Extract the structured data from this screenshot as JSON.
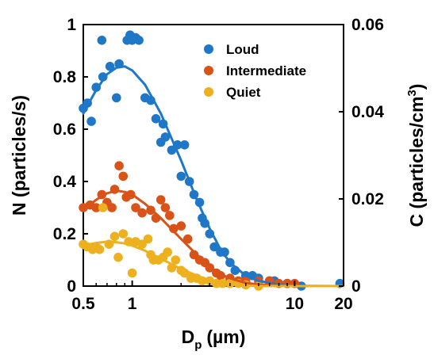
{
  "chart_data": {
    "type": "scatter",
    "title": "",
    "xlabel": "D",
    "xlabel_subscript": "p",
    "xlabel_unit": "(µm)",
    "ylabel_left": "N (particles/s)",
    "ylabel_right": "C (particles/cm",
    "ylabel_right_superscript": "3",
    "ylabel_right_close": ")",
    "x_scale": "log",
    "xlim": [
      0.5,
      20
    ],
    "ylim_left": [
      0,
      1
    ],
    "ylim_right": [
      0,
      0.06
    ],
    "x_ticks": [
      0.5,
      1,
      10,
      20
    ],
    "x_tick_labels": [
      "0.5",
      "1",
      "10",
      "20"
    ],
    "y_ticks_left": [
      0,
      0.2,
      0.4,
      0.6,
      0.8,
      1
    ],
    "y_tick_labels_left": [
      "0",
      "0.2",
      "0.4",
      "0.6",
      "0.8",
      "1"
    ],
    "y_ticks_right": [
      0,
      0.02,
      0.04,
      0.06
    ],
    "y_tick_labels_right": [
      "0",
      "0.02",
      "0.04",
      "0.06"
    ],
    "grid": false,
    "legend_position": "top-right",
    "series": [
      {
        "name": "Loud",
        "color": "#1f77c8",
        "points": [
          [
            0.5,
            0.68
          ],
          [
            0.53,
            0.7
          ],
          [
            0.56,
            0.63
          ],
          [
            0.6,
            0.76
          ],
          [
            0.65,
            0.94
          ],
          [
            0.66,
            0.8
          ],
          [
            0.73,
            0.84
          ],
          [
            0.8,
            0.72
          ],
          [
            0.83,
            0.85
          ],
          [
            0.93,
            0.94
          ],
          [
            0.97,
            0.96
          ],
          [
            1.0,
            0.94
          ],
          [
            1.05,
            0.95
          ],
          [
            1.1,
            0.94
          ],
          [
            1.2,
            0.72
          ],
          [
            1.3,
            0.71
          ],
          [
            1.4,
            0.64
          ],
          [
            1.5,
            0.55
          ],
          [
            1.55,
            0.62
          ],
          [
            1.6,
            0.57
          ],
          [
            1.75,
            0.52
          ],
          [
            1.9,
            0.54
          ],
          [
            2.0,
            0.42
          ],
          [
            2.1,
            0.54
          ],
          [
            2.25,
            0.4
          ],
          [
            2.4,
            0.35
          ],
          [
            2.6,
            0.32
          ],
          [
            2.7,
            0.26
          ],
          [
            2.8,
            0.24
          ],
          [
            3.0,
            0.2
          ],
          [
            3.2,
            0.15
          ],
          [
            3.5,
            0.13
          ],
          [
            3.7,
            0.13
          ],
          [
            4.0,
            0.09
          ],
          [
            4.3,
            0.06
          ],
          [
            5.0,
            0.04
          ],
          [
            5.5,
            0.04
          ],
          [
            6.0,
            0.03
          ],
          [
            7.0,
            0.02
          ],
          [
            7.5,
            0.02
          ],
          [
            9.0,
            0.01
          ],
          [
            11.0,
            0.0
          ],
          [
            19.0,
            0.01
          ]
        ],
        "fit": [
          [
            0.5,
            0.66
          ],
          [
            0.6,
            0.75
          ],
          [
            0.7,
            0.81
          ],
          [
            0.8,
            0.835
          ],
          [
            0.9,
            0.84
          ],
          [
            1.0,
            0.825
          ],
          [
            1.2,
            0.77
          ],
          [
            1.5,
            0.66
          ],
          [
            2.0,
            0.48
          ],
          [
            2.5,
            0.33
          ],
          [
            3.0,
            0.22
          ],
          [
            3.5,
            0.14
          ],
          [
            4.0,
            0.09
          ],
          [
            5.0,
            0.04
          ],
          [
            6.0,
            0.02
          ],
          [
            8.0,
            0.005
          ],
          [
            10.0,
            0.001
          ],
          [
            20.0,
            0.0
          ]
        ]
      },
      {
        "name": "Intermediate",
        "color": "#d95319",
        "points": [
          [
            0.5,
            0.3
          ],
          [
            0.55,
            0.31
          ],
          [
            0.6,
            0.3
          ],
          [
            0.65,
            0.35
          ],
          [
            0.7,
            0.32
          ],
          [
            0.75,
            0.3
          ],
          [
            0.78,
            0.37
          ],
          [
            0.83,
            0.46
          ],
          [
            0.88,
            0.42
          ],
          [
            0.92,
            0.34
          ],
          [
            0.98,
            0.35
          ],
          [
            1.05,
            0.3
          ],
          [
            1.15,
            0.28
          ],
          [
            1.3,
            0.29
          ],
          [
            1.4,
            0.26
          ],
          [
            1.5,
            0.33
          ],
          [
            1.6,
            0.3
          ],
          [
            1.7,
            0.27
          ],
          [
            1.8,
            0.22
          ],
          [
            2.0,
            0.23
          ],
          [
            2.2,
            0.18
          ],
          [
            2.4,
            0.12
          ],
          [
            2.6,
            0.1
          ],
          [
            2.8,
            0.09
          ],
          [
            3.0,
            0.07
          ],
          [
            3.3,
            0.05
          ],
          [
            3.5,
            0.04
          ],
          [
            4.0,
            0.03
          ],
          [
            4.5,
            0.02
          ],
          [
            5.0,
            0.02
          ],
          [
            6.0,
            0.02
          ],
          [
            7.0,
            0.02
          ],
          [
            8.0,
            0.01
          ],
          [
            9.0,
            0.01
          ],
          [
            10.0,
            0.01
          ]
        ],
        "fit": [
          [
            0.5,
            0.29
          ],
          [
            0.6,
            0.33
          ],
          [
            0.7,
            0.355
          ],
          [
            0.8,
            0.365
          ],
          [
            0.9,
            0.36
          ],
          [
            1.0,
            0.35
          ],
          [
            1.2,
            0.315
          ],
          [
            1.5,
            0.26
          ],
          [
            2.0,
            0.18
          ],
          [
            2.5,
            0.12
          ],
          [
            3.0,
            0.075
          ],
          [
            3.5,
            0.045
          ],
          [
            4.0,
            0.03
          ],
          [
            5.0,
            0.012
          ],
          [
            6.0,
            0.006
          ],
          [
            8.0,
            0.002
          ],
          [
            10.0,
            0.0
          ],
          [
            20.0,
            0.0
          ]
        ]
      },
      {
        "name": "Quiet",
        "color": "#edb120",
        "points": [
          [
            0.5,
            0.16
          ],
          [
            0.53,
            0.15
          ],
          [
            0.57,
            0.14
          ],
          [
            0.6,
            0.15
          ],
          [
            0.63,
            0.14
          ],
          [
            0.66,
            0.3
          ],
          [
            0.72,
            0.16
          ],
          [
            0.78,
            0.19
          ],
          [
            0.82,
            0.11
          ],
          [
            0.88,
            0.2
          ],
          [
            0.95,
            0.17
          ],
          [
            1.0,
            0.05
          ],
          [
            1.05,
            0.17
          ],
          [
            1.15,
            0.16
          ],
          [
            1.25,
            0.18
          ],
          [
            1.3,
            0.12
          ],
          [
            1.35,
            0.1
          ],
          [
            1.45,
            0.1
          ],
          [
            1.55,
            0.11
          ],
          [
            1.65,
            0.13
          ],
          [
            1.75,
            0.07
          ],
          [
            1.85,
            0.1
          ],
          [
            2.0,
            0.06
          ],
          [
            2.1,
            0.05
          ],
          [
            2.3,
            0.03
          ],
          [
            2.5,
            0.03
          ],
          [
            2.7,
            0.02
          ],
          [
            3.0,
            0.02
          ],
          [
            3.3,
            0.01
          ],
          [
            3.6,
            0.01
          ],
          [
            4.0,
            0.01
          ],
          [
            4.5,
            0.01
          ],
          [
            5.0,
            0.005
          ],
          [
            6.0,
            0.0
          ]
        ],
        "fit": [
          [
            0.5,
            0.155
          ],
          [
            0.6,
            0.165
          ],
          [
            0.7,
            0.17
          ],
          [
            0.8,
            0.168
          ],
          [
            0.9,
            0.163
          ],
          [
            1.0,
            0.155
          ],
          [
            1.2,
            0.135
          ],
          [
            1.5,
            0.105
          ],
          [
            2.0,
            0.065
          ],
          [
            2.5,
            0.04
          ],
          [
            3.0,
            0.022
          ],
          [
            3.5,
            0.012
          ],
          [
            4.0,
            0.006
          ],
          [
            5.0,
            0.002
          ],
          [
            6.0,
            0.0
          ],
          [
            10.0,
            0.0
          ],
          [
            20.0,
            0.0
          ]
        ]
      }
    ]
  }
}
